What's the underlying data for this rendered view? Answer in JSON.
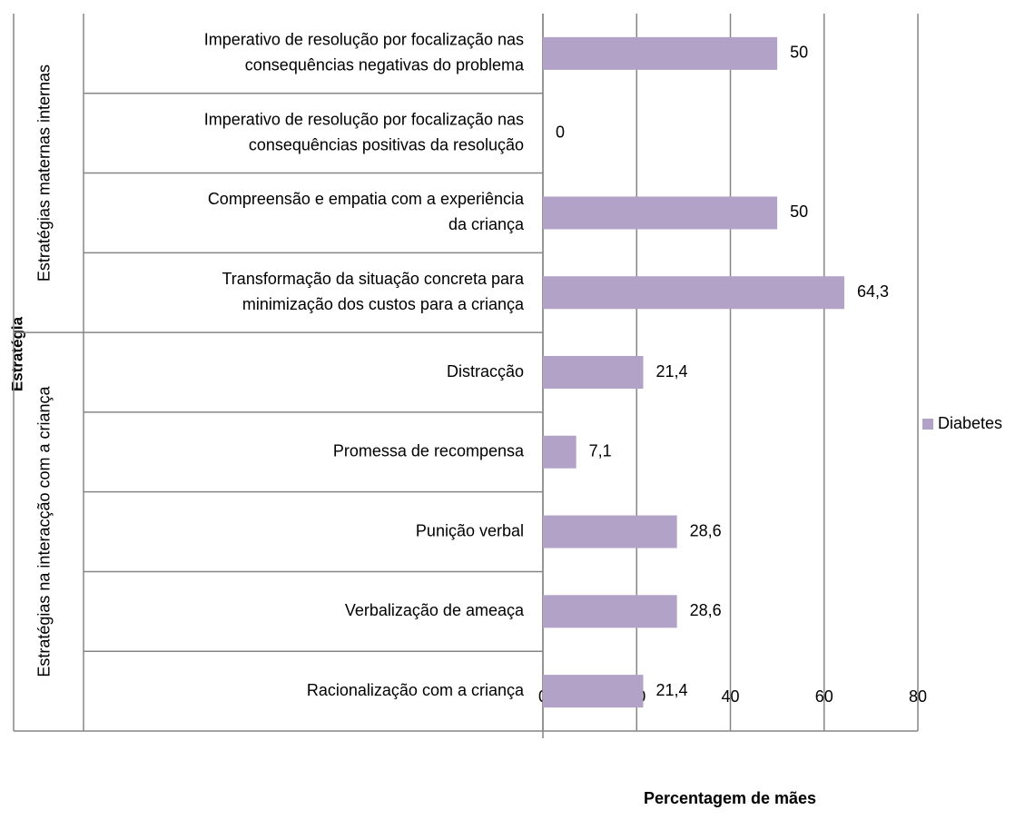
{
  "chart_data": {
    "type": "bar",
    "orientation": "horizontal",
    "y_title": "Estratégia",
    "x_title": "Percentagem de mães",
    "groups": [
      {
        "name": "Estratégias maternas internas",
        "categories": [
          [
            "Imperativo de resolução por focalização nas",
            "consequências negativas do problema"
          ],
          [
            "Imperativo de resolução por focalização nas",
            "consequências positivas da resolução"
          ],
          [
            "Compreensão e empatia com a experiência",
            "da criança"
          ],
          [
            "Transformação da situação concreta para",
            "minimização dos custos para a criança"
          ]
        ]
      },
      {
        "name": "Estratégias na interacção com a criança",
        "categories": [
          [
            "Distracção"
          ],
          [
            "Promessa de recompensa"
          ],
          [
            "Punição verbal"
          ],
          [
            "Verbalização de ameaça"
          ],
          [
            "Racionalização com a criança"
          ]
        ]
      }
    ],
    "series": [
      {
        "name": "Diabetes",
        "color": "#b3a2c7",
        "values": [
          50,
          0,
          50,
          64.3,
          21.4,
          7.1,
          28.6,
          28.6,
          21.4
        ],
        "value_labels": [
          "50",
          "0",
          "50",
          "64,3",
          "21,4",
          "7,1",
          "28,6",
          "28,6",
          "21,4"
        ]
      }
    ],
    "xlim": [
      0,
      80
    ],
    "xticks": [
      0,
      20,
      40,
      60,
      80
    ],
    "grid": true,
    "legend": "right"
  }
}
